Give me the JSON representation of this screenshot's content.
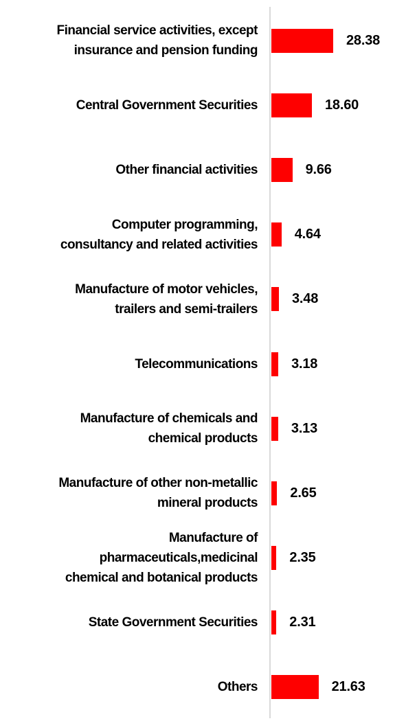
{
  "chart_data": {
    "type": "bar",
    "orientation": "horizontal",
    "categories": [
      "Financial service activities, except insurance and pension funding",
      "Central Government Securities",
      "Other financial activities",
      "Computer programming, consultancy and related activities",
      "Manufacture of motor vehicles, trailers and semi-trailers",
      "Telecommunications",
      "Manufacture of chemicals and chemical products",
      "Manufacture of other non-metallic mineral products",
      "Manufacture of pharmaceuticals,medicinal chemical and botanical products",
      "State Government Securities",
      "Others"
    ],
    "label_lines": [
      [
        "Financial service activities, except",
        "insurance and pension funding"
      ],
      [
        "Central Government Securities"
      ],
      [
        "Other financial activities"
      ],
      [
        "Computer programming,",
        "consultancy and related activities"
      ],
      [
        "Manufacture of motor vehicles,",
        "trailers and semi-trailers"
      ],
      [
        "Telecommunications"
      ],
      [
        "Manufacture of chemicals and",
        "chemical products"
      ],
      [
        "Manufacture of other non-metallic",
        "mineral products"
      ],
      [
        "Manufacture of",
        "pharmaceuticals,medicinal",
        "chemical and botanical products"
      ],
      [
        "State Government Securities"
      ],
      [
        "Others"
      ]
    ],
    "values": [
      28.38,
      18.6,
      9.66,
      4.64,
      3.48,
      3.18,
      3.13,
      2.65,
      2.35,
      2.31,
      21.63
    ],
    "value_labels": [
      "28.38",
      "18.60",
      "9.66",
      "4.64",
      "3.48",
      "3.18",
      "3.13",
      "2.65",
      "2.35",
      "2.31",
      "21.63"
    ],
    "xlim": [
      0,
      32
    ],
    "grid": false,
    "legend_position": "none",
    "value_label_position": "right",
    "bar_color": "#fe0000",
    "axis_line_color": "#d9d9d9",
    "text_color": "#000000"
  }
}
